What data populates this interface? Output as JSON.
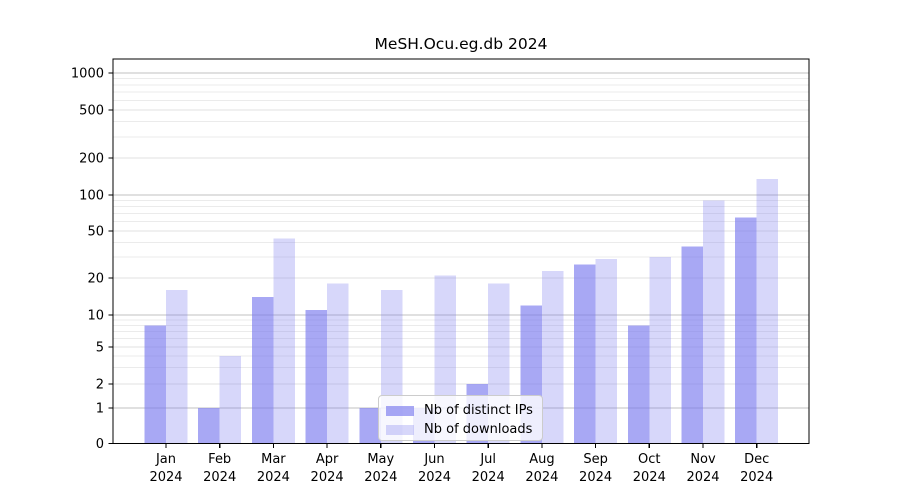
{
  "title": "MeSH.Ocu.eg.db 2024",
  "chart_data": {
    "type": "bar",
    "title": "MeSH.Ocu.eg.db 2024",
    "categories": [
      "Jan",
      "Feb",
      "Mar",
      "Apr",
      "May",
      "Jun",
      "Jul",
      "Aug",
      "Sep",
      "Oct",
      "Nov",
      "Dec"
    ],
    "year_label": "2024",
    "series": [
      {
        "name": "Nb of distinct IPs",
        "values": [
          8,
          1,
          14,
          11,
          1,
          1,
          2,
          12,
          26,
          8,
          37,
          65
        ],
        "alpha": 0.65
      },
      {
        "name": "Nb of downloads",
        "values": [
          16,
          4,
          43,
          18,
          16,
          21,
          18,
          23,
          29,
          30,
          90,
          135
        ],
        "alpha": 0.3
      }
    ],
    "bar_color": "#7a7aee",
    "yticks": [
      0,
      1,
      2,
      5,
      10,
      20,
      50,
      100,
      200,
      500,
      1000
    ],
    "ylim": [
      0,
      1000
    ],
    "scale": "log-like",
    "grid": "both",
    "legend_position": "lower-center-inside",
    "xlabel": "",
    "ylabel": ""
  },
  "legend": {
    "items": [
      {
        "label": "Nb of distinct IPs"
      },
      {
        "label": "Nb of downloads"
      }
    ]
  },
  "colors": {
    "grid_major": "#c0c0c0",
    "grid_minor": "#ebebeb",
    "axis": "#000000",
    "background": "#ffffff"
  }
}
